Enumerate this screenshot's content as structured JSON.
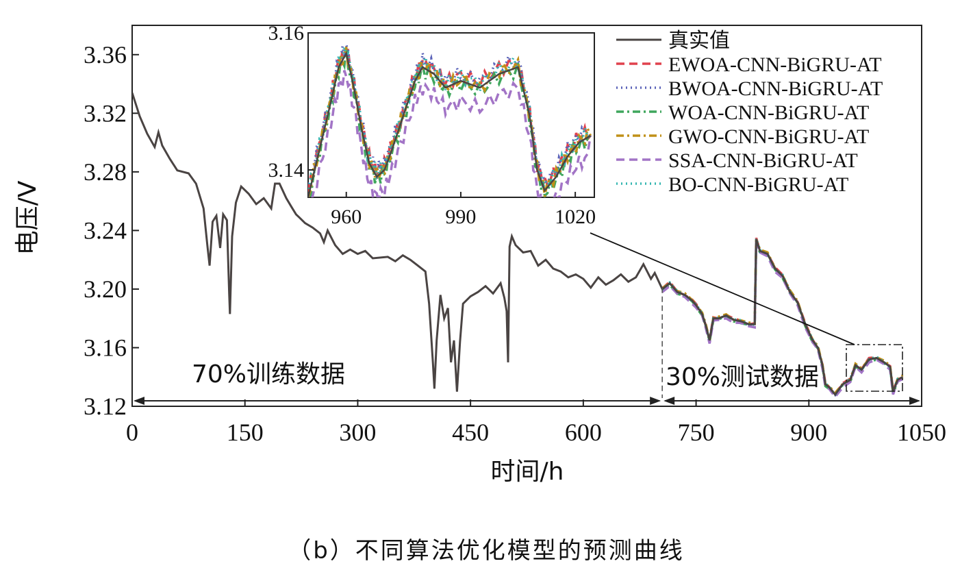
{
  "caption": "（b）不同算法优化模型的预测曲线",
  "chart_data": {
    "type": "line",
    "xlabel": "时间/h",
    "ylabel": "电压/V",
    "xlim": [
      0,
      1050
    ],
    "ylim": [
      3.12,
      3.38
    ],
    "xticks": [
      0,
      150,
      300,
      450,
      600,
      750,
      900,
      1050
    ],
    "xtick_labels": [
      "0",
      "150",
      "300",
      "450",
      "600",
      "750",
      "900",
      "1050"
    ],
    "yticks": [
      3.12,
      3.16,
      3.2,
      3.24,
      3.28,
      3.32,
      3.36
    ],
    "ytick_labels": [
      "3.12",
      "3.16",
      "3.20",
      "3.24",
      "3.28",
      "3.32",
      "3.36"
    ],
    "split_x": 705,
    "regions": {
      "train_label": "70%训练数据",
      "test_label": "30%测试数据"
    },
    "series": [
      {
        "name": "真实值",
        "color": "#4a4443",
        "style": "solid",
        "points": [
          [
            0,
            3.334
          ],
          [
            10,
            3.318
          ],
          [
            20,
            3.306
          ],
          [
            30,
            3.297
          ],
          [
            35,
            3.307
          ],
          [
            40,
            3.298
          ],
          [
            50,
            3.289
          ],
          [
            60,
            3.281
          ],
          [
            75,
            3.279
          ],
          [
            85,
            3.272
          ],
          [
            95,
            3.255
          ],
          [
            100,
            3.23
          ],
          [
            103,
            3.216
          ],
          [
            107,
            3.246
          ],
          [
            112,
            3.25
          ],
          [
            117,
            3.228
          ],
          [
            121,
            3.251
          ],
          [
            126,
            3.247
          ],
          [
            129,
            3.197
          ],
          [
            130,
            3.183
          ],
          [
            133,
            3.236
          ],
          [
            138,
            3.259
          ],
          [
            145,
            3.27
          ],
          [
            155,
            3.265
          ],
          [
            165,
            3.258
          ],
          [
            175,
            3.262
          ],
          [
            185,
            3.255
          ],
          [
            190,
            3.272
          ],
          [
            196,
            3.272
          ],
          [
            205,
            3.262
          ],
          [
            212,
            3.256
          ],
          [
            218,
            3.251
          ],
          [
            222,
            3.249
          ],
          [
            230,
            3.245
          ],
          [
            240,
            3.242
          ],
          [
            250,
            3.238
          ],
          [
            255,
            3.232
          ],
          [
            260,
            3.24
          ],
          [
            270,
            3.23
          ],
          [
            280,
            3.224
          ],
          [
            290,
            3.227
          ],
          [
            300,
            3.224
          ],
          [
            310,
            3.226
          ],
          [
            320,
            3.221
          ],
          [
            340,
            3.222
          ],
          [
            350,
            3.219
          ],
          [
            360,
            3.223
          ],
          [
            370,
            3.22
          ],
          [
            380,
            3.216
          ],
          [
            390,
            3.212
          ],
          [
            395,
            3.19
          ],
          [
            400,
            3.15
          ],
          [
            402,
            3.132
          ],
          [
            405,
            3.165
          ],
          [
            410,
            3.196
          ],
          [
            415,
            3.18
          ],
          [
            420,
            3.187
          ],
          [
            424,
            3.15
          ],
          [
            428,
            3.165
          ],
          [
            432,
            3.13
          ],
          [
            436,
            3.164
          ],
          [
            440,
            3.19
          ],
          [
            450,
            3.195
          ],
          [
            460,
            3.198
          ],
          [
            470,
            3.202
          ],
          [
            480,
            3.197
          ],
          [
            490,
            3.204
          ],
          [
            495,
            3.194
          ],
          [
            498,
            3.185
          ],
          [
            500,
            3.15
          ],
          [
            502,
            3.229
          ],
          [
            505,
            3.236
          ],
          [
            510,
            3.23
          ],
          [
            520,
            3.225
          ],
          [
            530,
            3.226
          ],
          [
            540,
            3.216
          ],
          [
            550,
            3.22
          ],
          [
            560,
            3.214
          ],
          [
            570,
            3.212
          ],
          [
            580,
            3.208
          ],
          [
            590,
            3.21
          ],
          [
            600,
            3.207
          ],
          [
            610,
            3.201
          ],
          [
            620,
            3.208
          ],
          [
            630,
            3.203
          ],
          [
            640,
            3.206
          ],
          [
            650,
            3.21
          ],
          [
            660,
            3.205
          ],
          [
            670,
            3.208
          ],
          [
            680,
            3.217
          ],
          [
            690,
            3.207
          ],
          [
            695,
            3.211
          ],
          [
            705,
            3.2
          ],
          [
            715,
            3.204
          ],
          [
            725,
            3.198
          ],
          [
            735,
            3.196
          ],
          [
            745,
            3.192
          ],
          [
            750,
            3.189
          ],
          [
            758,
            3.183
          ],
          [
            763,
            3.175
          ],
          [
            768,
            3.165
          ],
          [
            773,
            3.18
          ],
          [
            780,
            3.18
          ],
          [
            790,
            3.182
          ],
          [
            800,
            3.179
          ],
          [
            810,
            3.178
          ],
          [
            820,
            3.176
          ],
          [
            828,
            3.176
          ],
          [
            830,
            3.234
          ],
          [
            835,
            3.226
          ],
          [
            845,
            3.224
          ],
          [
            855,
            3.214
          ],
          [
            865,
            3.209
          ],
          [
            875,
            3.198
          ],
          [
            885,
            3.191
          ],
          [
            895,
            3.176
          ],
          [
            905,
            3.165
          ],
          [
            912,
            3.16
          ],
          [
            918,
            3.148
          ],
          [
            922,
            3.135
          ],
          [
            927,
            3.133
          ],
          [
            935,
            3.128
          ],
          [
            945,
            3.135
          ],
          [
            955,
            3.138
          ],
          [
            962,
            3.148
          ],
          [
            970,
            3.145
          ],
          [
            980,
            3.152
          ],
          [
            990,
            3.153
          ],
          [
            1000,
            3.15
          ],
          [
            1008,
            3.147
          ],
          [
            1012,
            3.13
          ],
          [
            1018,
            3.138
          ],
          [
            1025,
            3.14
          ]
        ]
      },
      {
        "name": "EWOA-CNN-BiGRU-AT",
        "color": "#e0424d",
        "style": "dashed"
      },
      {
        "name": "BWOA-CNN-BiGRU-AT",
        "color": "#5a62b8",
        "style": "dotted"
      },
      {
        "name": "WOA-CNN-BiGRU-AT",
        "color": "#3fa65d",
        "style": "dashdot"
      },
      {
        "name": "GWO-CNN-BiGRU-AT",
        "color": "#c09018",
        "style": "dashdot"
      },
      {
        "name": "SSA-CNN-BiGRU-AT",
        "color": "#a274c6",
        "style": "dashed"
      },
      {
        "name": "BO-CNN-BiGRU-AT",
        "color": "#33b6b0",
        "style": "dotted"
      }
    ],
    "inset": {
      "xlim": [
        950,
        1025
      ],
      "ylim": [
        3.136,
        3.16
      ],
      "xticks": [
        960,
        990,
        1020
      ],
      "xtick_labels": [
        "960",
        "990",
        "1020"
      ],
      "yticks": [
        3.14,
        3.16
      ],
      "ytick_labels": [
        "3.14",
        "3.16"
      ],
      "true_points": [
        [
          950,
          3.136
        ],
        [
          953,
          3.143
        ],
        [
          956,
          3.15
        ],
        [
          958,
          3.155
        ],
        [
          960,
          3.157
        ],
        [
          962,
          3.152
        ],
        [
          964,
          3.146
        ],
        [
          966,
          3.141
        ],
        [
          968,
          3.139
        ],
        [
          970,
          3.14
        ],
        [
          972,
          3.143
        ],
        [
          975,
          3.148
        ],
        [
          978,
          3.153
        ],
        [
          980,
          3.155
        ],
        [
          983,
          3.154
        ],
        [
          986,
          3.152
        ],
        [
          990,
          3.153
        ],
        [
          995,
          3.152
        ],
        [
          1000,
          3.154
        ],
        [
          1005,
          3.155
        ],
        [
          1008,
          3.148
        ],
        [
          1010,
          3.14
        ],
        [
          1012,
          3.137
        ],
        [
          1015,
          3.139
        ],
        [
          1018,
          3.142
        ],
        [
          1021,
          3.144
        ],
        [
          1024,
          3.145
        ]
      ]
    }
  }
}
